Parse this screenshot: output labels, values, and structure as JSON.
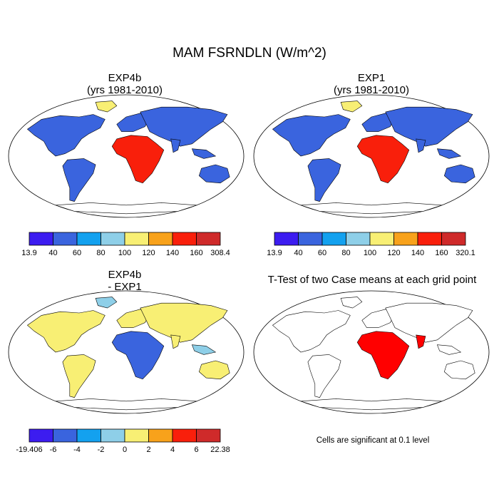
{
  "figure": {
    "title": "MAM FSRNDLN (W/m^2)"
  },
  "panels": [
    {
      "id": "exp4b",
      "title_line1": "EXP4b",
      "title_line2": "(yrs 1981-2010)",
      "colorbar": {
        "labels": [
          "13.9",
          "40",
          "60",
          "80",
          "100",
          "120",
          "140",
          "160",
          "308.4"
        ],
        "colors": [
          "#3c1cf0",
          "#3a64de",
          "#13a1ef",
          "#8ecfe8",
          "#f8ef74",
          "#f8a21b",
          "#f91f0b",
          "#cf2a2a"
        ]
      }
    },
    {
      "id": "exp1",
      "title_line1": "EXP1",
      "title_line2": "(yrs 1981-2010)",
      "colorbar": {
        "labels": [
          "13.9",
          "40",
          "60",
          "80",
          "100",
          "120",
          "140",
          "160",
          "320.1"
        ],
        "colors": [
          "#3c1cf0",
          "#3a64de",
          "#13a1ef",
          "#8ecfe8",
          "#f8ef74",
          "#f8a21b",
          "#f91f0b",
          "#cf2a2a"
        ]
      }
    },
    {
      "id": "diff",
      "title_line1": "EXP4b",
      "title_line2": "- EXP1",
      "colorbar": {
        "labels": [
          "-19.406",
          "-6",
          "-4",
          "-2",
          "0",
          "2",
          "4",
          "6",
          "22.38"
        ],
        "colors": [
          "#3c1cf0",
          "#3a64de",
          "#13a1ef",
          "#8ecfe8",
          "#f8ef74",
          "#f8a21b",
          "#f91f0b",
          "#cf2a2a"
        ]
      }
    },
    {
      "id": "ttest",
      "title_line1": "T-Test of two Case means at each grid point",
      "significance_color": "#ff0000",
      "note": "Cells are significant at 0.1 level"
    }
  ],
  "colors": {
    "land_outline": "#000000",
    "ocean": "#ffffff"
  }
}
